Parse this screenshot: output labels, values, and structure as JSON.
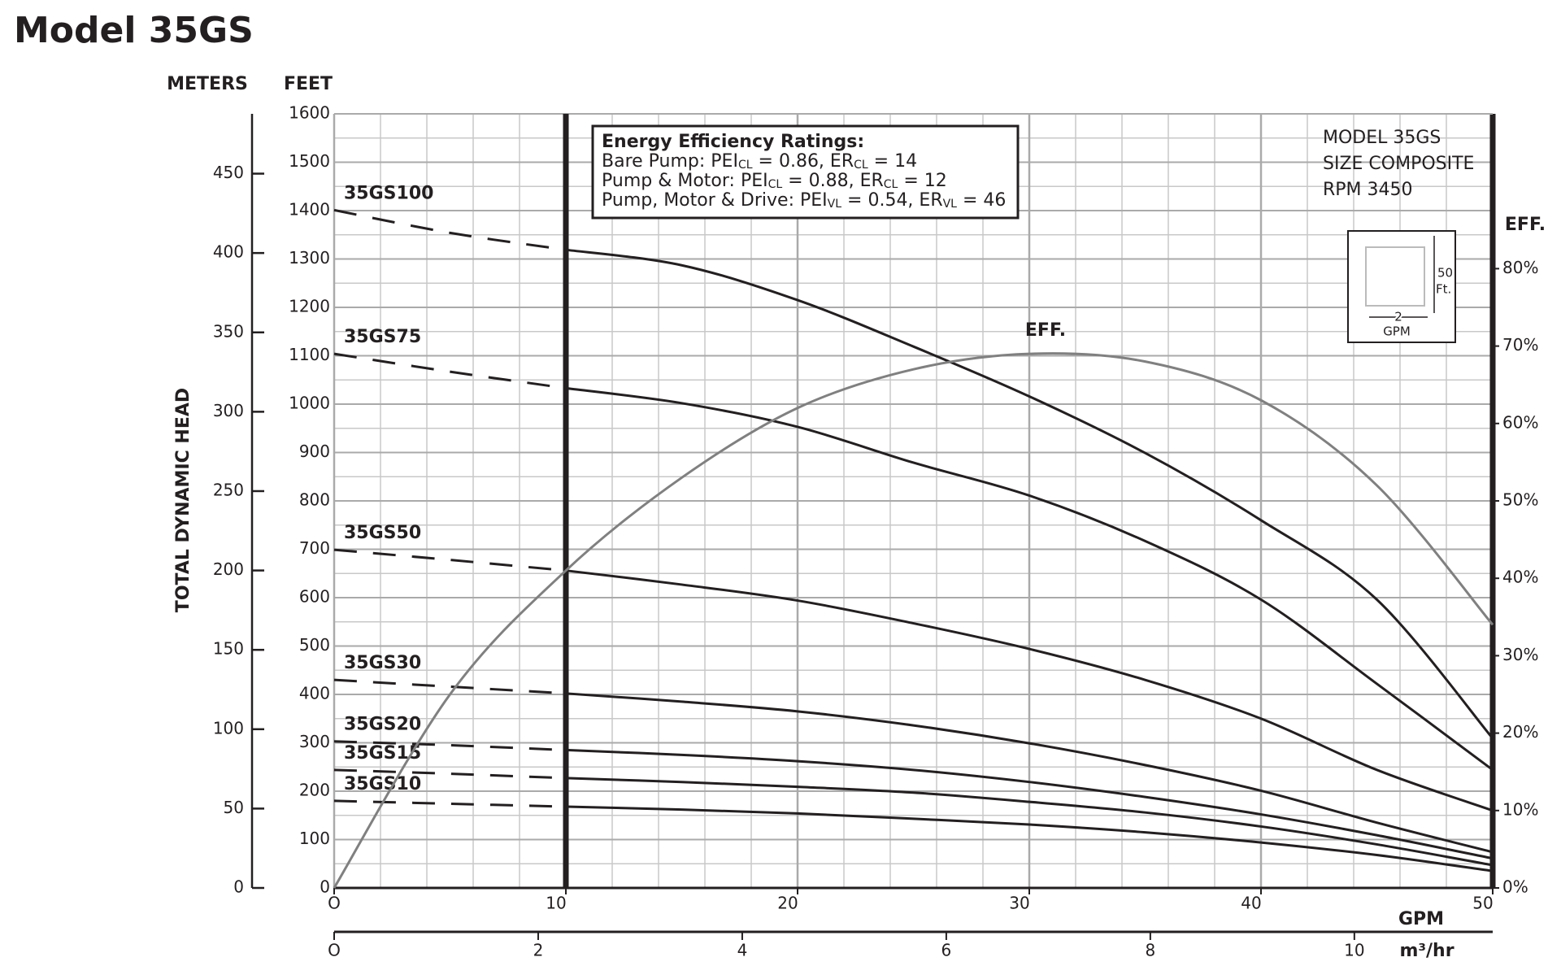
{
  "chart_data": {
    "type": "line",
    "title": "Model 35GS",
    "y_meters_label": "METERS",
    "y_feet_label": "FEET",
    "y_label": "TOTAL DYNAMIC HEAD",
    "y2_label": "EFF.",
    "x_label": "GPM",
    "x2_label": "m³/hr",
    "x": [
      0,
      5,
      10,
      15,
      20,
      25,
      30,
      35,
      40,
      45,
      50
    ],
    "xlim": [
      0,
      50
    ],
    "xticks": [
      {
        "value": 0,
        "label": "O"
      },
      10,
      20,
      30,
      40,
      50
    ],
    "x2lim": [
      0,
      11.356
    ],
    "x2ticks": [
      {
        "value": 0,
        "label": "O"
      },
      2,
      4,
      6,
      8,
      10
    ],
    "ylim": [
      0,
      1600
    ],
    "yticks": [
      0,
      100,
      200,
      300,
      400,
      500,
      600,
      700,
      800,
      900,
      1000,
      1100,
      1200,
      1300,
      1400,
      1500,
      1600
    ],
    "ymeterslim": [
      0,
      487.68
    ],
    "ymeterticks": [
      0,
      50,
      100,
      150,
      200,
      250,
      300,
      350,
      400,
      450
    ],
    "y2lim": [
      0,
      100
    ],
    "y2ticks": [
      {
        "value": 0,
        "label": "0%"
      },
      {
        "value": 10,
        "label": "10%"
      },
      {
        "value": 20,
        "label": "20%"
      },
      {
        "value": 30,
        "label": "30%"
      },
      {
        "value": 40,
        "label": "40%"
      },
      {
        "value": 50,
        "label": "50%"
      },
      {
        "value": 60,
        "label": "60%"
      },
      {
        "value": 70,
        "label": "70%"
      },
      {
        "value": 80,
        "label": "80%"
      }
    ],
    "grid": true,
    "min_flow_line": 10,
    "series": [
      {
        "name": "35GS100",
        "color": "#231f20",
        "values": [
          1401,
          1354,
          1319,
          1287,
          1215,
          1119,
          1016,
          899,
          760,
          596,
          309
        ]
      },
      {
        "name": "35GS75",
        "color": "#231f20",
        "values": [
          1104,
          1067,
          1033,
          1002,
          953,
          879,
          811,
          717,
          596,
          422,
          244
        ]
      },
      {
        "name": "35GS50",
        "color": "#231f20",
        "values": [
          699,
          678,
          656,
          627,
          594,
          547,
          494,
          430,
          350,
          244,
          160
        ]
      },
      {
        "name": "35GS30",
        "color": "#231f20",
        "values": [
          430,
          416,
          402,
          385,
          365,
          336,
          299,
          254,
          201,
          135,
          74
        ]
      },
      {
        "name": "35GS20",
        "color": "#231f20",
        "values": [
          303,
          295,
          285,
          275,
          262,
          244,
          219,
          188,
          152,
          109,
          61
        ]
      },
      {
        "name": "35GS15",
        "color": "#231f20",
        "values": [
          244,
          236,
          227,
          219,
          209,
          197,
          178,
          156,
          127,
          90,
          47
        ]
      },
      {
        "name": "35GS10",
        "color": "#231f20",
        "values": [
          180,
          174,
          168,
          162,
          154,
          143,
          131,
          115,
          94,
          68,
          35
        ]
      },
      {
        "name": "EFF.",
        "color": "#808080",
        "axis": "y2",
        "values": [
          0,
          25,
          41,
          53,
          62,
          67,
          69,
          68,
          63,
          52,
          34
        ]
      }
    ],
    "efficiency_ratings": {
      "title": "Energy Efficiency Ratings:",
      "lines": [
        [
          "Bare Pump: PEI",
          "CL",
          " = 0.86, ER",
          "CL",
          " = 14"
        ],
        [
          "Pump & Motor: PEI",
          "CL",
          " = 0.88, ER",
          "CL",
          " = 12"
        ],
        [
          "Pump, Motor & Drive: PEI",
          "VL",
          " = 0.54, ER",
          "VL",
          " = 46"
        ]
      ]
    },
    "model_info": [
      "MODEL 35GS",
      "SIZE COMPOSITE",
      "RPM 3450"
    ],
    "scale_box": {
      "height": "50",
      "height_unit": "Ft.",
      "width": "2",
      "width_unit": "GPM"
    }
  }
}
